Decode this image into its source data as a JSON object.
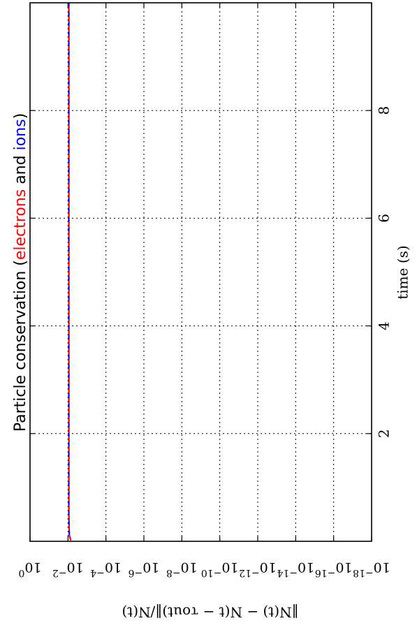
{
  "chart_data": {
    "type": "line",
    "orientation": "rotated-90-ccw",
    "title": {
      "prefix": "Particle conservation (",
      "electrons_word": "electrons",
      "and_word": " and ",
      "ions_word": "ions",
      "suffix": ")",
      "electrons_color": "#ff0000",
      "ions_color": "#0000ff"
    },
    "xlabel": "time (s)",
    "ylabel": "‖N(t) − N(t − τout)‖/N(t)",
    "x_ticks": [
      2,
      4,
      6,
      8
    ],
    "xlim": [
      0,
      10
    ],
    "y_scale": "log",
    "y_ticks": [
      {
        "base": "10",
        "exp": "0"
      },
      {
        "base": "10",
        "exp": "−2"
      },
      {
        "base": "10",
        "exp": "−4"
      },
      {
        "base": "10",
        "exp": "−6"
      },
      {
        "base": "10",
        "exp": "−8"
      },
      {
        "base": "10",
        "exp": "−10"
      },
      {
        "base": "10",
        "exp": "−12"
      },
      {
        "base": "10",
        "exp": "−14"
      },
      {
        "base": "10",
        "exp": "−16"
      },
      {
        "base": "10",
        "exp": "−18"
      }
    ],
    "ylim": [
      1e-18,
      1
    ],
    "grid": true,
    "series": [
      {
        "color": "#0000ff",
        "style": "solid",
        "x": [
          0.02,
          0.1,
          0.3,
          0.5,
          10
        ],
        "y": [
          0.007,
          0.0085,
          0.0088,
          0.009,
          0.009
        ]
      },
      {
        "color": "#ff0000",
        "style": "dashed",
        "x": [
          0.02,
          0.1,
          0.3,
          0.5,
          10
        ],
        "y": [
          0.007,
          0.0085,
          0.0088,
          0.009,
          0.009
        ]
      }
    ]
  }
}
